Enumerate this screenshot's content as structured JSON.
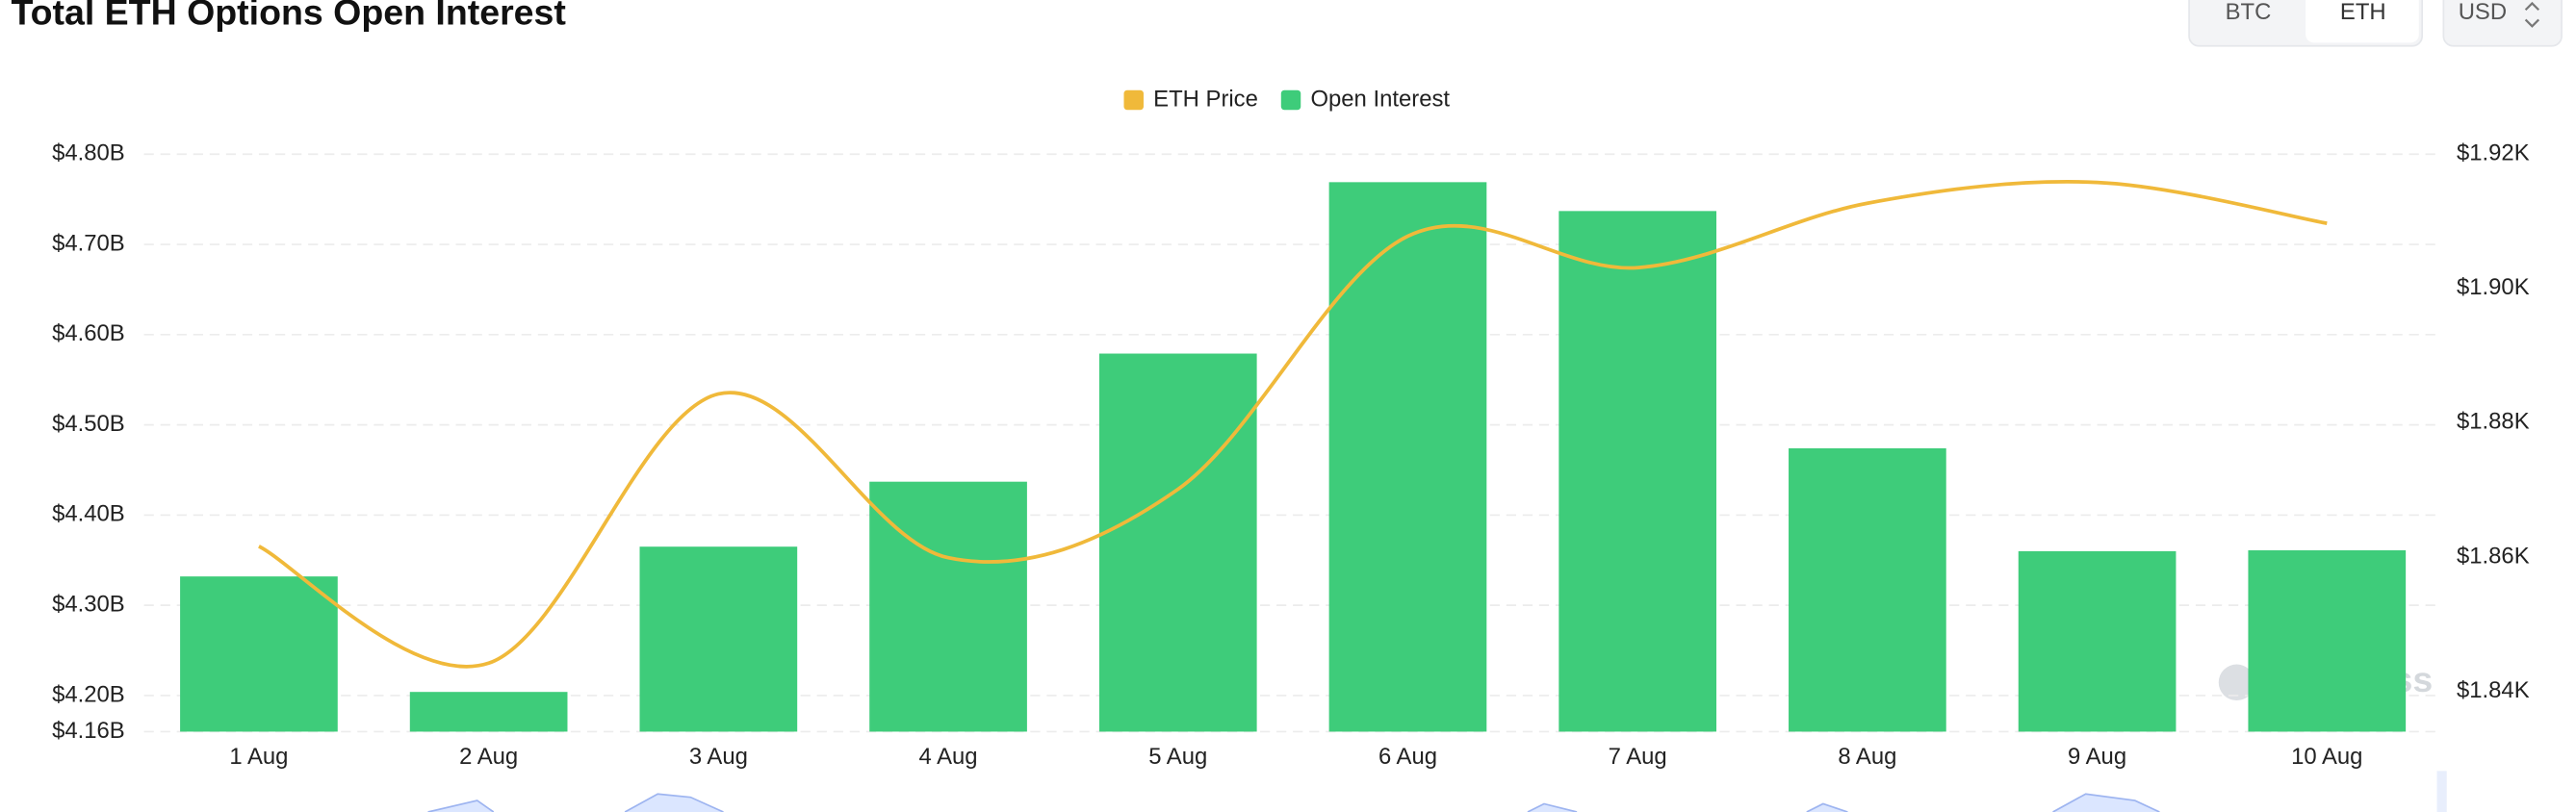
{
  "chart_data": {
    "type": "bar-line",
    "title": "Total ETH Options Open Interest",
    "categories": [
      "1 Aug",
      "2 Aug",
      "3 Aug",
      "4 Aug",
      "5 Aug",
      "6 Aug",
      "7 Aug",
      "8 Aug",
      "9 Aug",
      "10 Aug"
    ],
    "series": [
      {
        "name": "ETH Price",
        "type": "line",
        "axis": "y2",
        "color": "#f0b93a",
        "values": [
          1.8616,
          1.8442,
          1.8843,
          1.8599,
          1.8701,
          1.9078,
          1.9031,
          1.9127,
          1.9158,
          1.9097
        ]
      },
      {
        "name": "Open Interest",
        "type": "bar",
        "color": "#3ecc7a",
        "values": [
          4.332,
          4.204,
          4.365,
          4.437,
          4.579,
          4.769,
          4.737,
          4.474,
          4.36,
          4.361
        ]
      }
    ],
    "ylim": [
      4.16,
      4.8
    ],
    "yticks": [
      {
        "value": 4.16,
        "label": "$4.16B"
      },
      {
        "value": 4.2,
        "label": "$4.20B"
      },
      {
        "value": 4.3,
        "label": "$4.30B"
      },
      {
        "value": 4.4,
        "label": "$4.40B"
      },
      {
        "value": 4.5,
        "label": "$4.50B"
      },
      {
        "value": 4.6,
        "label": "$4.60B"
      },
      {
        "value": 4.7,
        "label": "$4.70B"
      },
      {
        "value": 4.8,
        "label": "$4.80B"
      }
    ],
    "y2lim": [
      1.834,
      1.92
    ],
    "y2ticks": [
      {
        "value": 1.84,
        "label": "$1.84K"
      },
      {
        "value": 1.86,
        "label": "$1.86K"
      },
      {
        "value": 1.88,
        "label": "$1.88K"
      },
      {
        "value": 1.9,
        "label": "$1.90K"
      },
      {
        "value": 1.92,
        "label": "$1.92K"
      }
    ],
    "grid": true
  },
  "controls": [
    "BTC",
    "ETH"
  ],
  "currency": "USD",
  "watermark": "coinglass"
}
